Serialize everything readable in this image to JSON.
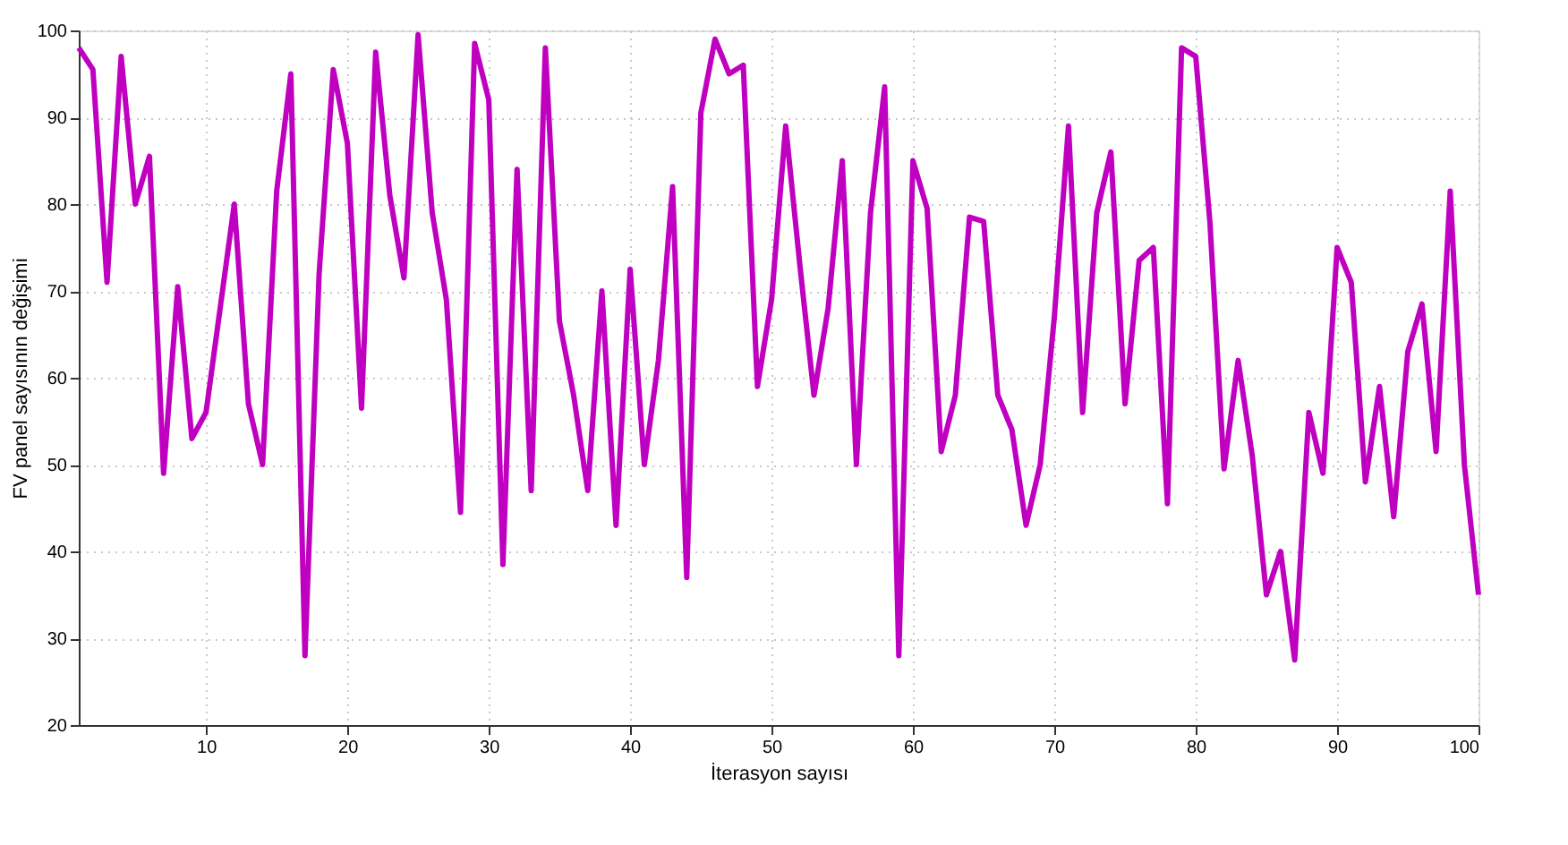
{
  "chart_data": {
    "type": "line",
    "xlabel": "İterasyon sayısı",
    "ylabel": "FV panel sayısının değişimi",
    "x": [
      1,
      2,
      3,
      4,
      5,
      6,
      7,
      8,
      9,
      10,
      11,
      12,
      13,
      14,
      15,
      16,
      17,
      18,
      19,
      20,
      21,
      22,
      23,
      24,
      25,
      26,
      27,
      28,
      29,
      30,
      31,
      32,
      33,
      34,
      35,
      36,
      37,
      38,
      39,
      40,
      41,
      42,
      43,
      44,
      45,
      46,
      47,
      48,
      49,
      50,
      51,
      52,
      53,
      54,
      55,
      56,
      57,
      58,
      59,
      60,
      61,
      62,
      63,
      64,
      65,
      66,
      67,
      68,
      69,
      70,
      71,
      72,
      73,
      74,
      75,
      76,
      77,
      78,
      79,
      80,
      81,
      82,
      83,
      84,
      85,
      86,
      87,
      88,
      89,
      90,
      91,
      92,
      93,
      94,
      95,
      96,
      97,
      98,
      99,
      100
    ],
    "series": [
      {
        "color": "#c000c0",
        "values": [
          98,
          95.5,
          71,
          97,
          80,
          85.5,
          49,
          70.5,
          53,
          56,
          68,
          80,
          57,
          50,
          81.5,
          95,
          28,
          72,
          95.5,
          87,
          56.5,
          97.5,
          81,
          71.5,
          99.5,
          79,
          69,
          44.5,
          98.5,
          92,
          38.5,
          84,
          47,
          98,
          66.5,
          58,
          47,
          70,
          43,
          72.5,
          50,
          62,
          82,
          37,
          90.5,
          99,
          95,
          96,
          59,
          69,
          89,
          73,
          58,
          68,
          85,
          50,
          79,
          93.5,
          28,
          85,
          79.5,
          51.5,
          58,
          78.5,
          78,
          58,
          54,
          43,
          50,
          67,
          89,
          56,
          79,
          86,
          57,
          73.5,
          75,
          45.5,
          98,
          97,
          78,
          49.5,
          62,
          51,
          35,
          40,
          27.5,
          56,
          49,
          75,
          71,
          48,
          59,
          44,
          63,
          68.5,
          51.5,
          81.5,
          50,
          35
        ]
      }
    ],
    "xlim": [
      1,
      100
    ],
    "ylim": [
      20,
      100
    ],
    "xticks": [
      10,
      20,
      30,
      40,
      50,
      60,
      70,
      80,
      90,
      100
    ],
    "yticks": [
      20,
      30,
      40,
      50,
      60,
      70,
      80,
      90,
      100
    ],
    "grid": true,
    "marker": "none",
    "line_style": "solid"
  }
}
